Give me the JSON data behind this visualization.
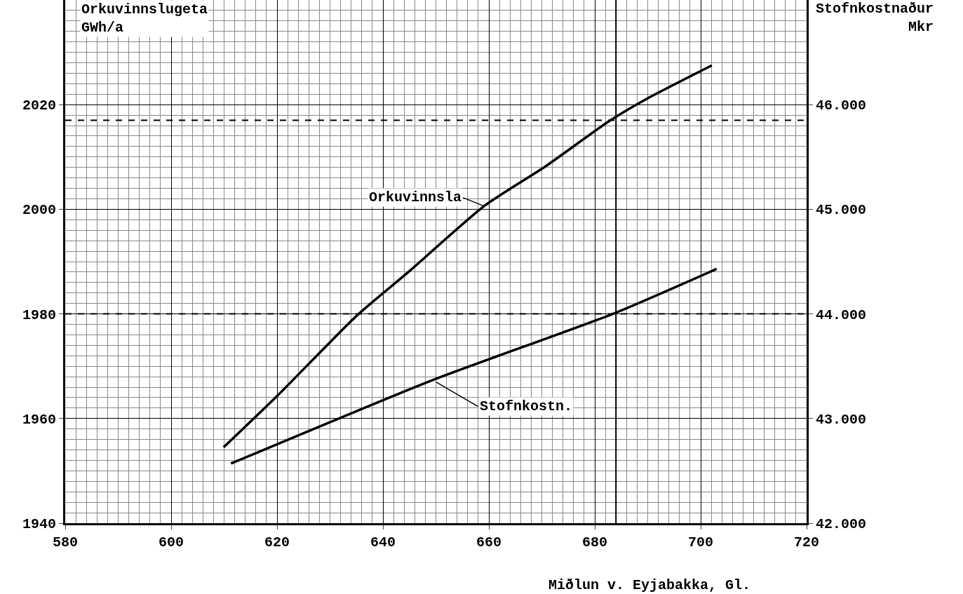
{
  "chart_data": {
    "type": "line",
    "xlabel": "Miðlun v. Eyjabakka, Gl.",
    "ylabel": "Orkuvinnslugeta\nGWh/a",
    "y2label": "Stofnkostnaður\nMkr",
    "xlim": [
      580,
      720
    ],
    "xticks": [
      580,
      600,
      620,
      640,
      660,
      680,
      700,
      720
    ],
    "ylim": [
      1940,
      2040
    ],
    "yticks": [
      1940,
      1960,
      1980,
      2000,
      2020
    ],
    "y2lim": [
      42000,
      47000
    ],
    "y2ticks": [
      {
        "value": 42000,
        "label": "42.000"
      },
      {
        "value": 43000,
        "label": "43.000"
      },
      {
        "value": 44000,
        "label": "44.000"
      },
      {
        "value": 45000,
        "label": "45.000"
      },
      {
        "value": 46000,
        "label": "46.000"
      }
    ],
    "series": [
      {
        "color": "#000000",
        "x": [
          609.9,
          620.1,
          635.2,
          644.8,
          659.1,
          670.7,
          682.8,
          689.8,
          702.1
        ],
        "values": [
          1954.5,
          1964.4,
          1979.8,
          1988.0,
          2000.6,
          2008.2,
          2016.9,
          2021.1,
          2027.5
        ]
      },
      {
        "color": "#000000",
        "axis": "y2",
        "x": [
          611.3,
          649.5,
          683.4,
          703.0
        ],
        "values": [
          42570,
          43370,
          44000,
          44430
        ]
      }
    ],
    "ref_lines": [
      {
        "axis": "y",
        "value": 2017,
        "line_style": "dashed",
        "color": "#000000"
      },
      {
        "axis": "y2",
        "value": 44000,
        "line_style": "dashed",
        "color": "#000000"
      },
      {
        "axis": "x",
        "value": 684,
        "line_style": "solid",
        "color": "#000000"
      }
    ],
    "annotations": [
      {
        "text": "Orkuvinnsla",
        "x": 659.1,
        "y": 2000.6
      },
      {
        "text": "Stofnkostn.",
        "x": 650,
        "y": 1967
      }
    ],
    "grid": true,
    "line_style": "solid",
    "marker": "none"
  }
}
